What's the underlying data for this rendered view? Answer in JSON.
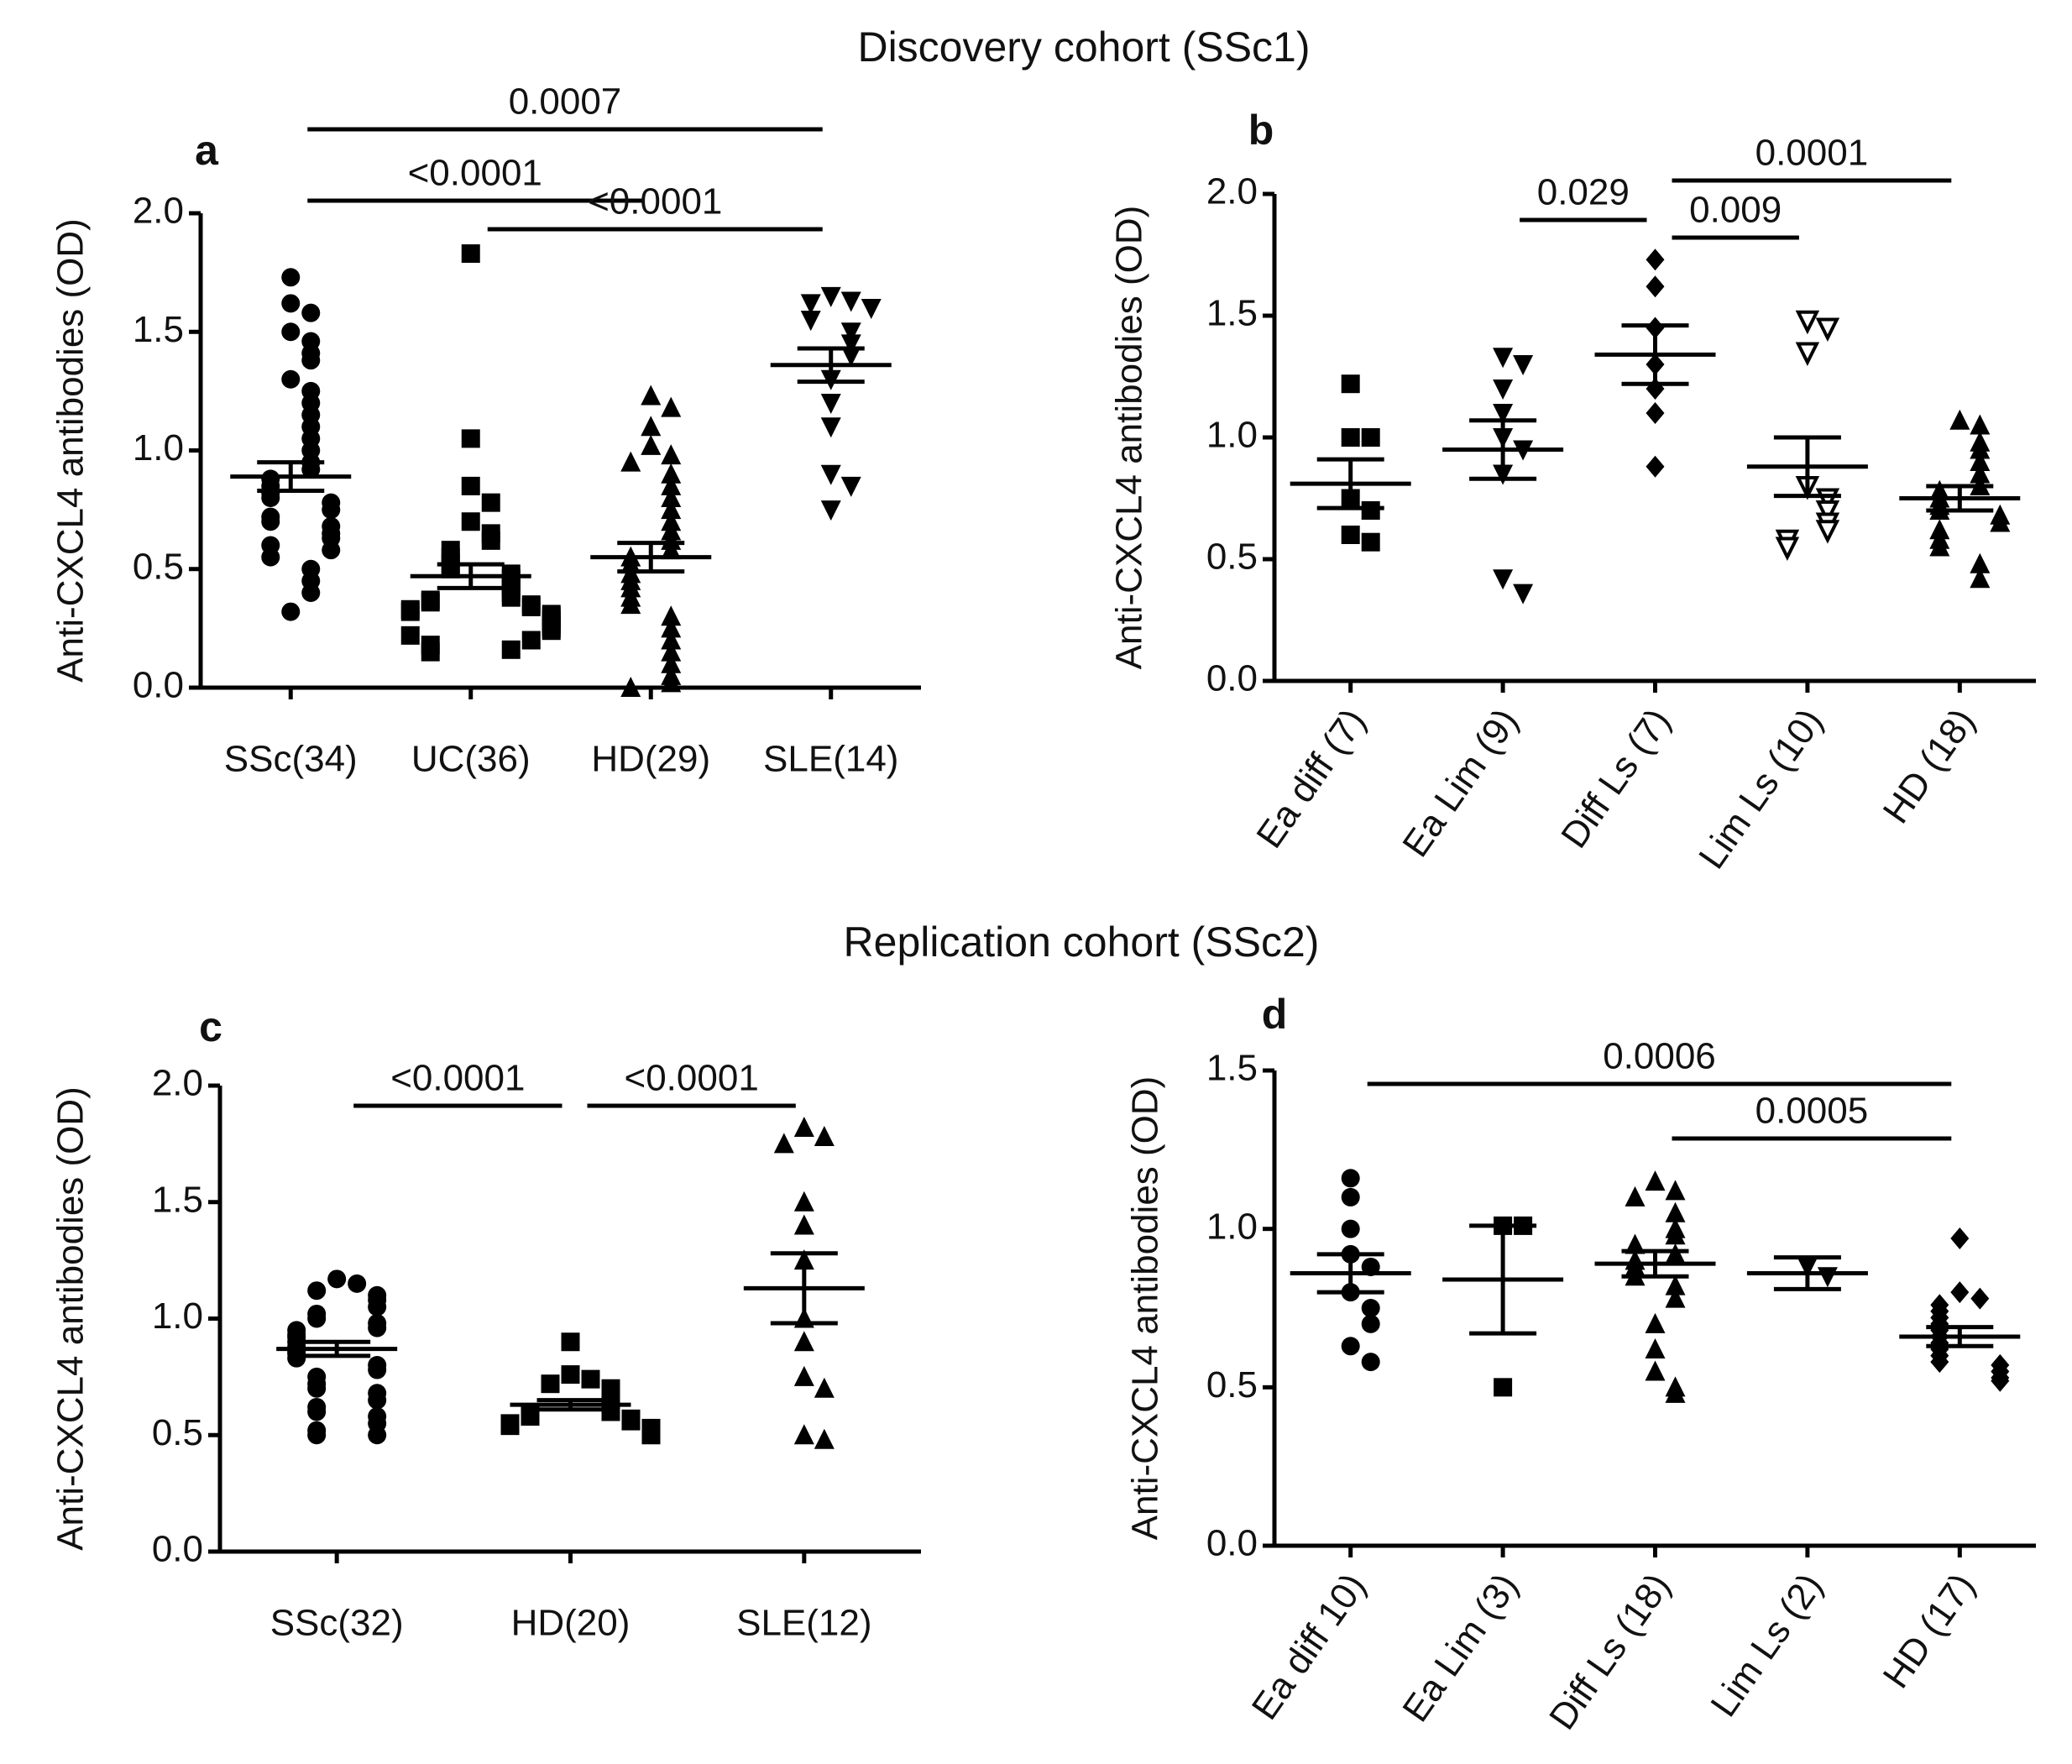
{
  "headings": [
    "Discovery cohort (SSc1)",
    "Replication  cohort (SSc2)"
  ],
  "chart_data": [
    {
      "type": "dot",
      "panel": "a",
      "ylabel": "Anti-CXCL4 antibodies (OD)",
      "color": "#000000",
      "categories": [
        "SSc(34)",
        "UC(36)",
        "HD(29)",
        "SLE(14)"
      ],
      "markers": [
        "circle",
        "square",
        "triangle-up",
        "triangle-down"
      ],
      "values": [
        [
          1.73,
          1.62,
          1.58,
          1.5,
          1.46,
          1.41,
          1.38,
          1.3,
          1.25,
          1.2,
          1.15,
          1.1,
          1.05,
          1.0,
          0.95,
          0.92,
          0.88,
          0.85,
          0.82,
          0.8,
          0.78,
          0.75,
          0.72,
          0.7,
          0.68,
          0.65,
          0.63,
          0.6,
          0.58,
          0.55,
          0.5,
          0.45,
          0.4,
          0.32
        ],
        [
          1.83,
          1.05,
          0.85,
          0.78,
          0.7,
          0.65,
          0.62,
          0.58,
          0.55,
          0.52,
          0.5,
          0.48,
          0.46,
          0.44,
          0.42,
          0.4,
          0.38,
          0.37,
          0.36,
          0.35,
          0.34,
          0.33,
          0.32,
          0.31,
          0.3,
          0.29,
          0.28,
          0.27,
          0.26,
          0.25,
          0.24,
          0.22,
          0.2,
          0.18,
          0.16,
          0.15
        ],
        [
          1.23,
          1.18,
          1.1,
          1.02,
          0.98,
          0.95,
          0.9,
          0.85,
          0.8,
          0.75,
          0.7,
          0.66,
          0.62,
          0.58,
          0.55,
          0.52,
          0.48,
          0.45,
          0.42,
          0.38,
          0.35,
          0.3,
          0.25,
          0.2,
          0.15,
          0.1,
          0.05,
          0.02,
          0.0
        ],
        [
          1.65,
          1.63,
          1.62,
          1.6,
          1.55,
          1.5,
          1.45,
          1.4,
          1.3,
          1.2,
          1.1,
          0.9,
          0.85,
          0.75
        ]
      ],
      "means": [
        0.89,
        0.47,
        0.55,
        1.36
      ],
      "sems": [
        0.06,
        0.05,
        0.06,
        0.07
      ],
      "ylim": [
        0,
        2.0
      ],
      "yticks": [
        {
          "value": 0,
          "label": "0.0"
        },
        0.5,
        {
          "value": 1,
          "label": "1.0"
        },
        1.5,
        {
          "value": 2,
          "label": "2.0"
        }
      ],
      "comparisons": [
        {
          "from": 0,
          "to": 3,
          "label": "0.0007"
        },
        {
          "from": 0,
          "to": 2,
          "label": "<0.0001"
        },
        {
          "from": 1,
          "to": 3,
          "label": "<0.0001"
        }
      ]
    },
    {
      "type": "dot",
      "panel": "b",
      "ylabel": "Anti-CXCL4 antibodies (OD)",
      "color": "#000000",
      "categories": [
        "Ea diff (7)",
        "Ea Lim (9)",
        "Diff Ls (7)",
        "Lim Ls (10)",
        "HD (18)"
      ],
      "markers": [
        "square",
        "triangle-down",
        "diamond",
        "triangle-down-open",
        "triangle-up"
      ],
      "values": [
        [
          1.22,
          1.0,
          1.0,
          0.75,
          0.7,
          0.6,
          0.57
        ],
        [
          1.33,
          1.3,
          1.2,
          1.1,
          1.0,
          0.95,
          0.85,
          0.42,
          0.36
        ],
        [
          1.73,
          1.62,
          1.45,
          1.3,
          1.2,
          1.1,
          0.88
        ],
        [
          1.48,
          1.45,
          1.35,
          0.8,
          0.75,
          0.7,
          0.65,
          0.62,
          0.58,
          0.55
        ],
        [
          1.07,
          1.05,
          0.98,
          0.95,
          0.9,
          0.85,
          0.8,
          0.78,
          0.75,
          0.72,
          0.7,
          0.68,
          0.65,
          0.62,
          0.58,
          0.55,
          0.48,
          0.42
        ]
      ],
      "means": [
        0.81,
        0.95,
        1.34,
        0.88,
        0.75
      ],
      "sems": [
        0.1,
        0.12,
        0.12,
        0.12,
        0.05
      ],
      "ylim": [
        0,
        2.0
      ],
      "yticks": [
        {
          "value": 0,
          "label": "0.0"
        },
        0.5,
        {
          "value": 1,
          "label": "1.0"
        },
        1.5,
        {
          "value": 2,
          "label": "2.0"
        }
      ],
      "comparisons": [
        {
          "from": 1,
          "to": 2,
          "label": "0.029"
        },
        {
          "from": 2,
          "to": 4,
          "label": "0.0001"
        },
        {
          "from": 2,
          "to": 3,
          "label": "0.009"
        }
      ]
    },
    {
      "type": "dot",
      "panel": "c",
      "ylabel": "Anti-CXCL4 antibodies (OD)",
      "color": "#000000",
      "categories": [
        "SSc(32)",
        "HD(20)",
        "SLE(12)"
      ],
      "markers": [
        "circle",
        "square",
        "triangle-up"
      ],
      "values": [
        [
          1.17,
          1.15,
          1.12,
          1.1,
          1.08,
          1.05,
          1.02,
          1.0,
          0.98,
          0.96,
          0.95,
          0.93,
          0.92,
          0.9,
          0.88,
          0.86,
          0.85,
          0.83,
          0.8,
          0.78,
          0.75,
          0.72,
          0.7,
          0.68,
          0.65,
          0.62,
          0.6,
          0.58,
          0.55,
          0.52,
          0.5,
          0.5
        ],
        [
          0.9,
          0.76,
          0.74,
          0.72,
          0.7,
          0.68,
          0.66,
          0.64,
          0.62,
          0.6,
          0.59,
          0.58,
          0.57,
          0.56,
          0.55,
          0.54,
          0.53,
          0.52,
          0.51,
          0.5
        ],
        [
          1.82,
          1.78,
          1.75,
          1.5,
          1.4,
          1.25,
          1.0,
          0.9,
          0.75,
          0.7,
          0.5,
          0.48
        ]
      ],
      "means": [
        0.87,
        0.63,
        1.13
      ],
      "sems": [
        0.03,
        0.02,
        0.15
      ],
      "ylim": [
        0,
        2.0
      ],
      "yticks": [
        {
          "value": 0,
          "label": "0.0"
        },
        0.5,
        {
          "value": 1,
          "label": "1.0"
        },
        1.5,
        {
          "value": 2,
          "label": "2.0"
        }
      ],
      "comparisons": [
        {
          "from": 0,
          "to": 1,
          "label": "<0.0001"
        },
        {
          "from": 1,
          "to": 2,
          "label": "<0.0001"
        }
      ]
    },
    {
      "type": "dot",
      "panel": "d",
      "ylabel": "Anti-CXCL4 antibodies (OD)",
      "color": "#000000",
      "categories": [
        "Ea diff 10)",
        "Ea Lim (3)",
        "Diff Ls (18)",
        "Lim Ls (2)",
        "HD (17)"
      ],
      "markers": [
        "circle",
        "square",
        "triangle-up",
        "triangle-down",
        "diamond"
      ],
      "values": [
        [
          1.16,
          1.1,
          1.0,
          0.92,
          0.88,
          0.8,
          0.75,
          0.7,
          0.63,
          0.58
        ],
        [
          1.01,
          1.01,
          0.5
        ],
        [
          1.15,
          1.12,
          1.1,
          1.05,
          1.0,
          0.98,
          0.95,
          0.92,
          0.9,
          0.88,
          0.85,
          0.82,
          0.78,
          0.7,
          0.62,
          0.55,
          0.5,
          0.48
        ],
        [
          0.88,
          0.85
        ],
        [
          0.97,
          0.8,
          0.78,
          0.76,
          0.74,
          0.72,
          0.7,
          0.68,
          0.66,
          0.64,
          0.62,
          0.6,
          0.58,
          0.57,
          0.55,
          0.53,
          0.52
        ]
      ],
      "means": [
        0.86,
        0.84,
        0.89,
        0.86,
        0.66
      ],
      "sems": [
        0.06,
        0.17,
        0.04,
        0.05,
        0.03
      ],
      "ylim": [
        0,
        1.5
      ],
      "yticks": [
        {
          "value": 0,
          "label": "0.0"
        },
        0.5,
        {
          "value": 1,
          "label": "1.0"
        },
        1.5
      ],
      "comparisons": [
        {
          "from": 0,
          "to": 4,
          "label": "0.0006"
        },
        {
          "from": 2,
          "to": 4,
          "label": "0.0005"
        }
      ]
    }
  ]
}
